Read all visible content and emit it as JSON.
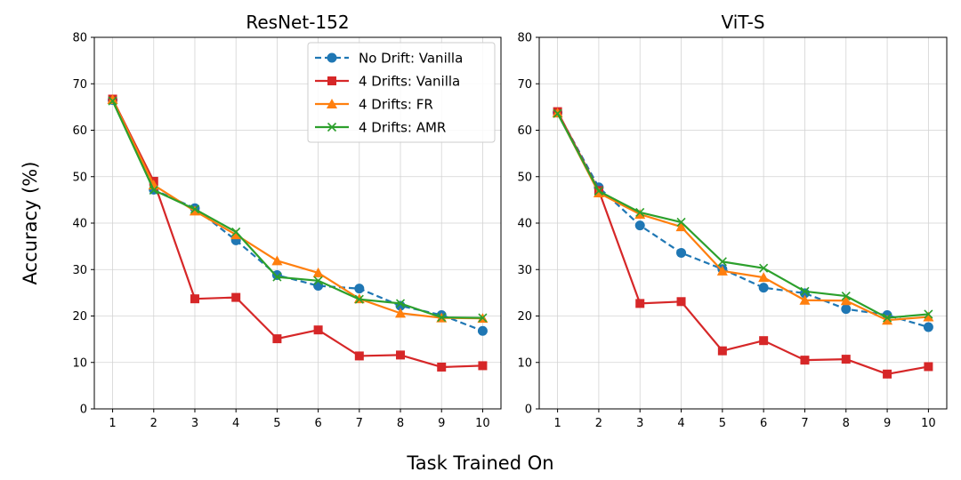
{
  "figure": {
    "ylabel": "Accuracy (%)",
    "xlabel": "Task Trained On"
  },
  "chart_data": [
    {
      "type": "line",
      "title": "ResNet-152",
      "xlabel": "Task Trained On",
      "ylabel": "Accuracy (%)",
      "x": [
        1,
        2,
        3,
        4,
        5,
        6,
        7,
        8,
        9,
        10
      ],
      "xticks": [
        "1",
        "2",
        "3",
        "4",
        "5",
        "6",
        "7",
        "8",
        "9",
        "10"
      ],
      "ylim": [
        0,
        80
      ],
      "yticks": [
        "0",
        "10",
        "20",
        "30",
        "40",
        "50",
        "60",
        "70",
        "80"
      ],
      "grid": true,
      "legend": "top-right",
      "series": [
        {
          "name": "No Drift: Vanilla",
          "color": "#1f77b4",
          "marker": "circle",
          "dashed": true,
          "values": [
            66.5,
            47.2,
            43.2,
            36.3,
            28.8,
            26.5,
            25.9,
            22.2,
            20.2,
            16.8
          ]
        },
        {
          "name": "4 Drifts: Vanilla",
          "color": "#d62728",
          "marker": "square",
          "dashed": false,
          "values": [
            66.7,
            49.0,
            23.7,
            24.0,
            15.1,
            17.0,
            11.4,
            11.6,
            9.0,
            9.3
          ]
        },
        {
          "name": "4 Drifts: FR",
          "color": "#ff7f0e",
          "marker": "triangle",
          "dashed": false,
          "values": [
            66.6,
            48.2,
            42.6,
            37.5,
            31.9,
            29.3,
            23.7,
            20.6,
            19.6,
            19.5
          ]
        },
        {
          "name": "4 Drifts: AMR",
          "color": "#2ca02c",
          "marker": "x",
          "dashed": false,
          "values": [
            66.3,
            47.1,
            43.0,
            38.1,
            28.4,
            27.6,
            23.6,
            22.7,
            19.7,
            19.6
          ]
        }
      ]
    },
    {
      "type": "line",
      "title": "ViT-S",
      "xlabel": "Task Trained On",
      "ylabel": "Accuracy (%)",
      "x": [
        1,
        2,
        3,
        4,
        5,
        6,
        7,
        8,
        9,
        10
      ],
      "xticks": [
        "1",
        "2",
        "3",
        "4",
        "5",
        "6",
        "7",
        "8",
        "9",
        "10"
      ],
      "ylim": [
        0,
        80
      ],
      "yticks": [
        "0",
        "10",
        "20",
        "30",
        "40",
        "50",
        "60",
        "70",
        "80"
      ],
      "grid": true,
      "legend": "none",
      "series": [
        {
          "name": "No Drift: Vanilla",
          "color": "#1f77b4",
          "marker": "circle",
          "dashed": true,
          "values": [
            63.8,
            47.7,
            39.5,
            33.6,
            30.1,
            26.1,
            24.9,
            21.5,
            20.2,
            17.6
          ]
        },
        {
          "name": "4 Drifts: Vanilla",
          "color": "#d62728",
          "marker": "square",
          "dashed": false,
          "values": [
            64.0,
            47.0,
            22.7,
            23.1,
            12.5,
            14.7,
            10.5,
            10.7,
            7.5,
            9.1
          ]
        },
        {
          "name": "4 Drifts: FR",
          "color": "#ff7f0e",
          "marker": "triangle",
          "dashed": false,
          "values": [
            63.7,
            46.5,
            41.9,
            39.2,
            29.7,
            28.3,
            23.4,
            23.3,
            19.1,
            19.8
          ]
        },
        {
          "name": "4 Drifts: AMR",
          "color": "#2ca02c",
          "marker": "x",
          "dashed": false,
          "values": [
            63.6,
            46.9,
            42.3,
            40.2,
            31.7,
            30.3,
            25.3,
            24.3,
            19.6,
            20.4
          ]
        }
      ]
    }
  ]
}
